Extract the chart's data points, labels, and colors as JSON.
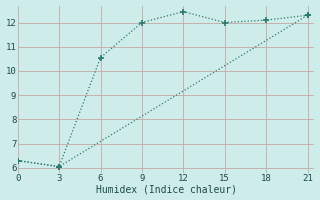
{
  "xlabel": "Humidex (Indice chaleur)",
  "bg_color": "#ceecea",
  "grid_color": "#c4a8a8",
  "line_color": "#2a7a6e",
  "line1_x": [
    0,
    3,
    6,
    9,
    12,
    15,
    18,
    21
  ],
  "line1_y": [
    6.3,
    6.05,
    10.55,
    12.0,
    12.45,
    12.0,
    12.1,
    12.3
  ],
  "line2_x": [
    0,
    3,
    21
  ],
  "line2_y": [
    6.3,
    6.05,
    12.3
  ],
  "xlim": [
    0,
    21.5
  ],
  "ylim": [
    5.8,
    12.7
  ],
  "xticks": [
    0,
    3,
    6,
    9,
    12,
    15,
    18,
    21
  ],
  "yticks": [
    6,
    7,
    8,
    9,
    10,
    11,
    12
  ],
  "tick_fontsize": 6.5,
  "xlabel_fontsize": 7
}
